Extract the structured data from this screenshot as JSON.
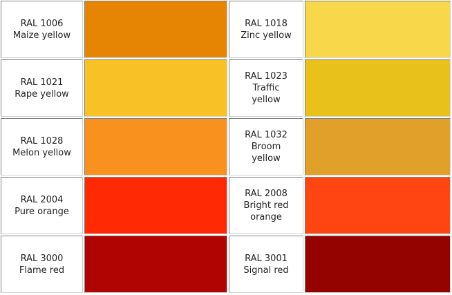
{
  "rows": [
    [
      {
        "code": "RAL 1006",
        "name": "Maize yellow",
        "color": "#E68503"
      },
      {
        "code": "RAL 1018",
        "name": "Zinc yellow",
        "color": "#F8D84A"
      }
    ],
    [
      {
        "code": "RAL 1021",
        "name": "Rape yellow",
        "color": "#F8C125"
      },
      {
        "code": "RAL 1023",
        "name": "Traffic yellow",
        "color": "#E8C21A"
      }
    ],
    [
      {
        "code": "RAL 1028",
        "name": "Melon yellow",
        "color": "#F8911D"
      },
      {
        "code": "RAL 1032",
        "name": "Broom yellow",
        "color": "#E0A02A"
      }
    ],
    [
      {
        "code": "RAL 2004",
        "name": "Pure orange",
        "color": "#FF2A04"
      },
      {
        "code": "RAL 2008",
        "name": "Bright red orange",
        "color": "#FF4511"
      }
    ],
    [
      {
        "code": "RAL 3000",
        "name": "Flame red",
        "color": "#AF0401"
      },
      {
        "code": "RAL 3001",
        "name": "Signal red",
        "color": "#950301"
      }
    ]
  ]
}
